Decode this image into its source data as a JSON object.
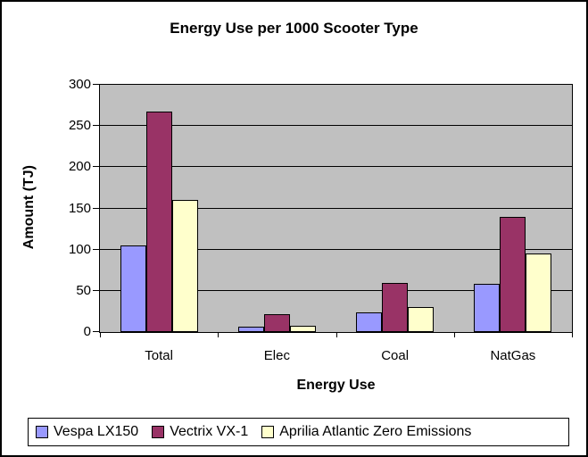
{
  "title": "Energy Use per 1000 Scooter Type",
  "y_axis": {
    "title": "Amount (TJ)",
    "ticks": [
      0,
      50,
      100,
      150,
      200,
      250,
      300
    ]
  },
  "x_axis": {
    "title": "Energy Use"
  },
  "colors": {
    "plot_background": "#C0C0C0",
    "chart_background": "#FFFFFF",
    "axis_and_grid": "#000000",
    "series_vespa": "#9999FF",
    "series_vectrix": "#993366",
    "series_aprilia": "#FFFFCC"
  },
  "legend": {
    "items": [
      "Vespa LX150",
      "Vectrix VX-1",
      "Aprilia Atlantic Zero Emissions"
    ]
  },
  "chart_data": {
    "type": "bar",
    "title": "Energy Use per 1000 Scooter Type",
    "xlabel": "Energy Use",
    "ylabel": "Amount (TJ)",
    "ylim": [
      0,
      300
    ],
    "ytick_step": 50,
    "grid": true,
    "legend_position": "bottom",
    "categories": [
      "Total",
      "Elec",
      "Coal",
      "NatGas"
    ],
    "series": [
      {
        "name": "Vespa LX150",
        "color": "#9999FF",
        "values": [
          105,
          7,
          24,
          58
        ]
      },
      {
        "name": "Vectrix VX-1",
        "color": "#993366",
        "values": [
          268,
          22,
          60,
          140
        ]
      },
      {
        "name": "Aprilia Atlantic Zero Emissions",
        "color": "#FFFFCC",
        "values": [
          160,
          8,
          30,
          95
        ]
      }
    ]
  }
}
